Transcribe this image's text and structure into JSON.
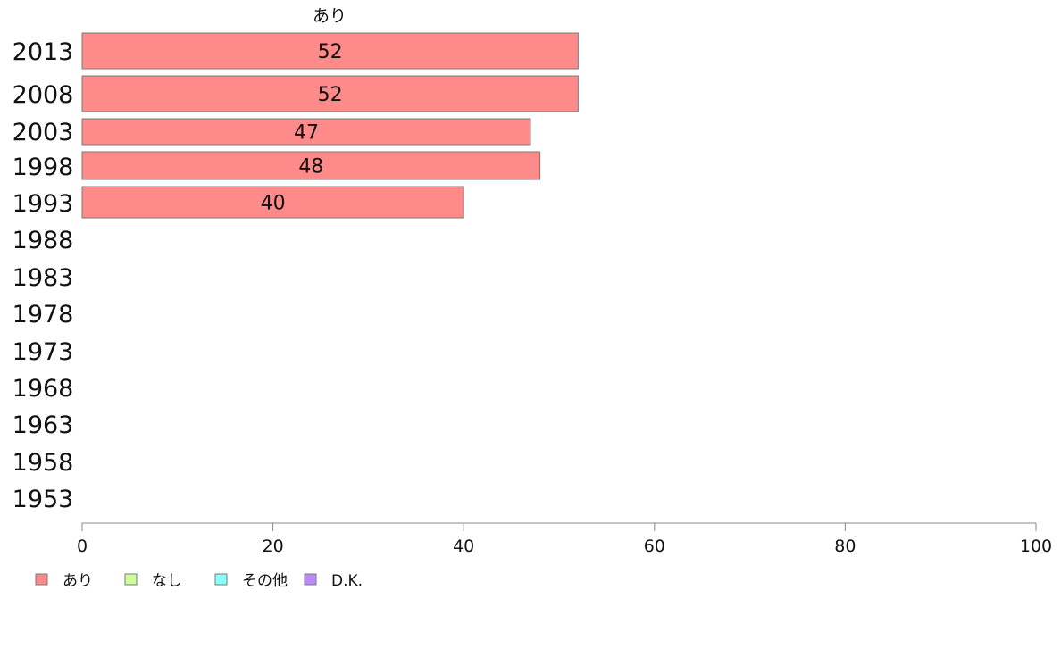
{
  "chart_data": {
    "type": "bar",
    "orientation": "horizontal",
    "categories": [
      "2013",
      "2008",
      "2003",
      "1998",
      "1993",
      "1988",
      "1983",
      "1978",
      "1973",
      "1968",
      "1963",
      "1958",
      "1953"
    ],
    "series": [
      {
        "name": "あり",
        "color": "#ff8a8a",
        "values": [
          52,
          52,
          47,
          48,
          40,
          null,
          null,
          null,
          null,
          null,
          null,
          null,
          null
        ]
      },
      {
        "name": "なし",
        "color": "#ccff99",
        "values": [
          null,
          null,
          null,
          null,
          null,
          null,
          null,
          null,
          null,
          null,
          null,
          null,
          null
        ]
      },
      {
        "name": "その他",
        "color": "#88ffff",
        "values": [
          null,
          null,
          null,
          null,
          null,
          null,
          null,
          null,
          null,
          null,
          null,
          null,
          null
        ]
      },
      {
        "name": "D.K.",
        "color": "#bb88ff",
        "values": [
          null,
          null,
          null,
          null,
          null,
          null,
          null,
          null,
          null,
          null,
          null,
          null,
          null
        ]
      }
    ],
    "value_labels": [
      "52",
      "52",
      "47",
      "48",
      "40"
    ],
    "series_label": "あり",
    "xlim": [
      0,
      100
    ],
    "xticks": [
      "0",
      "20",
      "40",
      "60",
      "80",
      "100"
    ],
    "title": "",
    "xlabel": "",
    "ylabel": "",
    "grid": false,
    "legend_position": "bottom-left"
  }
}
